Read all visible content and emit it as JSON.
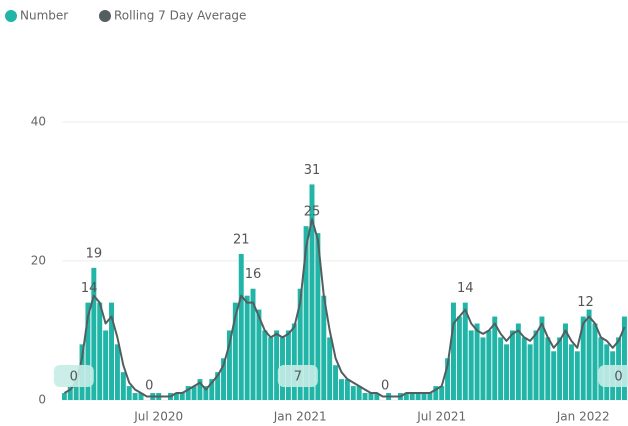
{
  "chart_data": {
    "type": "bar-line",
    "x": [
      2,
      2.25,
      2.5,
      2.75,
      3,
      3.25,
      3.5,
      3.75,
      4,
      4.25,
      4.5,
      4.75,
      5,
      5.25,
      5.5,
      5.75,
      6,
      6.25,
      6.5,
      6.75,
      7,
      7.25,
      7.5,
      7.75,
      8,
      8.25,
      8.5,
      8.75,
      9,
      9.25,
      9.5,
      9.75,
      10,
      10.25,
      10.5,
      10.75,
      11,
      11.25,
      11.5,
      11.75,
      12,
      12.25,
      12.5,
      12.75,
      13,
      13.25,
      13.5,
      13.75,
      14,
      14.25,
      14.5,
      14.75,
      15,
      15.25,
      15.5,
      15.75,
      16,
      16.25,
      16.5,
      16.75,
      17,
      17.25,
      17.5,
      17.75,
      18,
      18.25,
      18.5,
      18.75,
      19,
      19.25,
      19.5,
      19.75,
      20,
      20.25,
      20.5,
      20.75,
      21,
      21.25,
      21.5,
      21.75,
      22,
      22.25,
      22.5,
      22.75,
      23,
      23.25,
      23.5,
      23.75,
      24,
      24.25,
      24.5,
      24.75,
      25,
      25.25,
      25.5,
      25.75
    ],
    "series": [
      {
        "name": "Number",
        "color": "#20b5a6",
        "kind": "bar",
        "values": [
          1,
          2,
          3,
          8,
          14,
          19,
          14,
          10,
          14,
          8,
          4,
          2,
          1,
          1,
          0,
          1,
          1,
          0,
          1,
          1,
          1,
          2,
          2,
          3,
          2,
          3,
          4,
          6,
          10,
          14,
          21,
          15,
          16,
          13,
          10,
          9,
          10,
          9,
          10,
          11,
          16,
          25,
          31,
          24,
          15,
          9,
          5,
          3,
          3,
          2,
          2,
          1,
          1,
          1,
          0,
          1,
          0,
          1,
          1,
          1,
          1,
          1,
          1,
          2,
          2,
          6,
          14,
          12,
          14,
          10,
          11,
          9,
          10,
          12,
          9,
          8,
          10,
          11,
          9,
          8,
          10,
          12,
          9,
          7,
          9,
          11,
          8,
          7,
          12,
          13,
          11,
          9,
          8,
          7,
          9,
          12
        ]
      },
      {
        "name": "Rolling 7 Day Average",
        "color": "#545e60",
        "kind": "line",
        "values": [
          1,
          1.5,
          2.5,
          6,
          12,
          15,
          14,
          11,
          12,
          9,
          5,
          2.5,
          1.5,
          1,
          0.5,
          0.5,
          0.5,
          0.5,
          0.5,
          1,
          1,
          1.5,
          2,
          2.5,
          1.5,
          2.5,
          3.5,
          5,
          8,
          12,
          15,
          14,
          14,
          12,
          10,
          9,
          9.5,
          9,
          9.5,
          10.5,
          14,
          22,
          26,
          23,
          15,
          10,
          6,
          4,
          3,
          2.5,
          2,
          1.5,
          1,
          1,
          0.5,
          0.5,
          0.5,
          0.5,
          1,
          1,
          1,
          1,
          1,
          1.5,
          2,
          5,
          11,
          12,
          13,
          11,
          10,
          9.5,
          10,
          11,
          9.5,
          8.5,
          9.5,
          10,
          9,
          8.5,
          9.5,
          11,
          9,
          7.5,
          8.5,
          10,
          8.5,
          7.5,
          11,
          12,
          11,
          9,
          8.5,
          7.5,
          8.5,
          10.5
        ]
      }
    ],
    "annotations": [
      {
        "x": 2.4,
        "y": 0,
        "style": "box"
      },
      {
        "x": 3.25,
        "y": 19
      },
      {
        "x": 3.05,
        "y": 14
      },
      {
        "x": 5.6,
        "y": 0
      },
      {
        "x": 9.5,
        "y": 21
      },
      {
        "x": 10.0,
        "y": 16
      },
      {
        "x": 12.5,
        "y": 31
      },
      {
        "x": 12.5,
        "y": 25
      },
      {
        "x": 11.9,
        "y": 7,
        "style": "box"
      },
      {
        "x": 15.6,
        "y": 0
      },
      {
        "x": 19.0,
        "y": 14
      },
      {
        "x": 24.1,
        "y": 12
      },
      {
        "x": 25.5,
        "y": 0,
        "style": "box"
      }
    ],
    "xlim": [
      1.9,
      25.9
    ],
    "xticks": [
      {
        "value": 6,
        "label": "Jul 2020"
      },
      {
        "value": 12,
        "label": "Jan 2021"
      },
      {
        "value": 18,
        "label": "Jul 2021"
      },
      {
        "value": 24,
        "label": "Jan 2022"
      }
    ],
    "ylim": [
      0,
      44
    ],
    "yticks": [
      0,
      20,
      40
    ],
    "grid": true
  }
}
